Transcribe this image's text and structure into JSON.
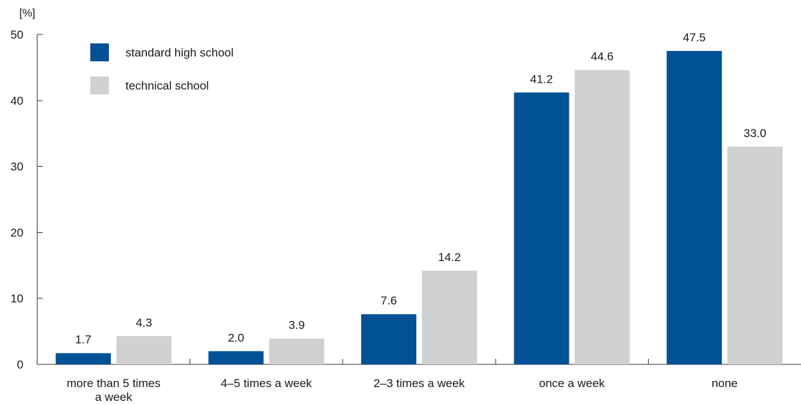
{
  "chart_data": {
    "type": "bar",
    "unit_label": "[%]",
    "categories": [
      [
        "more than 5 times",
        "a week"
      ],
      [
        "4–5 times a week"
      ],
      [
        "2–3 times a week"
      ],
      [
        "once a week"
      ],
      [
        "none"
      ]
    ],
    "series": [
      {
        "name": "standard high school",
        "color": "#005196",
        "values": [
          1.7,
          2.0,
          7.6,
          41.2,
          47.5
        ],
        "labels": [
          "1.7",
          "2.0",
          "7.6",
          "41.2",
          "47.5"
        ]
      },
      {
        "name": "technical school",
        "color": "#d0d1d3",
        "values": [
          4.3,
          3.9,
          14.2,
          44.6,
          33.0
        ],
        "labels": [
          "4.3",
          "3.9",
          "14.2",
          "44.6",
          "33.0"
        ]
      }
    ],
    "ylim": [
      0,
      50
    ],
    "yticks": [
      0,
      10,
      20,
      30,
      40,
      50
    ],
    "ytick_labels": [
      "0",
      "10",
      "20",
      "30",
      "40",
      "50"
    ],
    "grid": false,
    "legend_position": "top-left"
  }
}
